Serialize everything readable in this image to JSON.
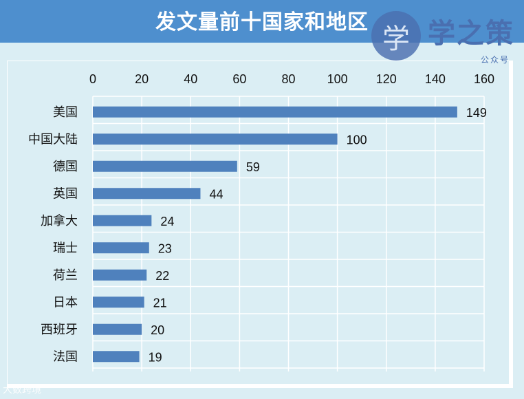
{
  "header": {
    "title": "发文量前十国家和地区"
  },
  "logo": {
    "glyph": "学",
    "text": "学之策",
    "subtitle": "公众号"
  },
  "watermark": {
    "text": "大数跨境"
  },
  "colors": {
    "title_bar": "#4e8fce",
    "background": "#dbeef4",
    "bar": "#4f81bd",
    "grid": "#ffffff",
    "logo": "#4a6fb0"
  },
  "chart_data": {
    "type": "bar",
    "orientation": "horizontal",
    "title": "发文量前十国家和地区",
    "categories": [
      "美国",
      "中国大陆",
      "德国",
      "英国",
      "加拿大",
      "瑞士",
      "荷兰",
      "日本",
      "西班牙",
      "法国"
    ],
    "values": [
      149,
      100,
      59,
      44,
      24,
      23,
      22,
      21,
      20,
      19
    ],
    "xlim": [
      0,
      160
    ],
    "xticks": [
      0,
      20,
      40,
      60,
      80,
      100,
      120,
      140,
      160
    ],
    "axis_position": "top",
    "grid": true,
    "data_labels": true
  }
}
